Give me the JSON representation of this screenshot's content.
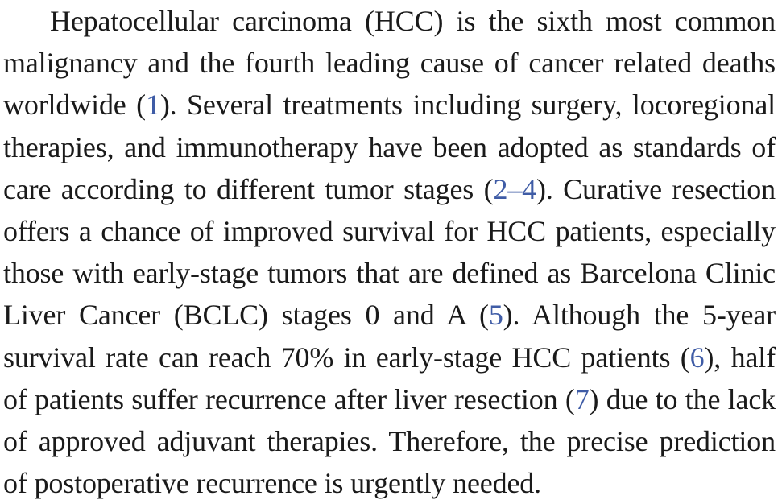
{
  "paragraph": {
    "segments": [
      {
        "text": "Hepatocellular carcinoma (HCC) is the sixth most common malignancy and the fourth leading cause of cancer related deaths worldwide (",
        "cite": false
      },
      {
        "text": "1",
        "cite": true
      },
      {
        "text": "). Several treatments including surgery, locoregional therapies, and immunotherapy have been adopted as standards of care according to different tumor stages (",
        "cite": false
      },
      {
        "text": "2–4",
        "cite": true
      },
      {
        "text": "). Curative resection offers a chance of improved survival for HCC patients, especially those with early-stage tumors that are defined as Barcelona Clinic Liver Cancer (BCLC) stages 0 and A (",
        "cite": false
      },
      {
        "text": "5",
        "cite": true
      },
      {
        "text": "). Although the 5-year survival rate can reach 70% in early-stage HCC patients (",
        "cite": false
      },
      {
        "text": "6",
        "cite": true
      },
      {
        "text": "), half of patients suffer recurrence after liver resection (",
        "cite": false
      },
      {
        "text": "7",
        "cite": true
      },
      {
        "text": ") due to the lack of approved adjuvant therapies. Therefore, the precise prediction of postoperative recurrence is urgently needed.",
        "cite": false
      }
    ]
  },
  "colors": {
    "text": "#1a1a1a",
    "citation_link": "#3f5ca6"
  }
}
